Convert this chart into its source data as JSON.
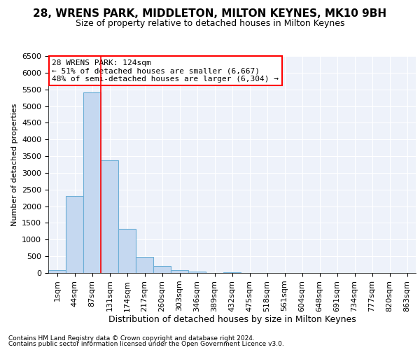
{
  "title1": "28, WRENS PARK, MIDDLETON, MILTON KEYNES, MK10 9BH",
  "title2": "Size of property relative to detached houses in Milton Keynes",
  "xlabel": "Distribution of detached houses by size in Milton Keynes",
  "ylabel": "Number of detached properties",
  "footnote1": "Contains HM Land Registry data © Crown copyright and database right 2024.",
  "footnote2": "Contains public sector information licensed under the Open Government Licence v3.0.",
  "annotation_title": "28 WRENS PARK: 124sqm",
  "annotation_line1": "← 51% of detached houses are smaller (6,667)",
  "annotation_line2": "48% of semi-detached houses are larger (6,304) →",
  "bar_values": [
    75,
    2300,
    5400,
    3380,
    1330,
    480,
    200,
    80,
    50,
    0,
    20,
    10,
    0,
    0,
    0,
    0,
    0,
    0,
    0,
    0,
    0
  ],
  "bar_labels": [
    "1sqm",
    "44sqm",
    "87sqm",
    "131sqm",
    "174sqm",
    "217sqm",
    "260sqm",
    "303sqm",
    "346sqm",
    "389sqm",
    "432sqm",
    "475sqm",
    "518sqm",
    "561sqm",
    "604sqm",
    "648sqm",
    "691sqm",
    "734sqm",
    "777sqm",
    "820sqm",
    "863sqm"
  ],
  "bar_color": "#c5d8f0",
  "bar_edge_color": "#6baed6",
  "red_line_x": 2.5,
  "marker_color": "red",
  "ylim": [
    0,
    6500
  ],
  "yticks": [
    0,
    500,
    1000,
    1500,
    2000,
    2500,
    3000,
    3500,
    4000,
    4500,
    5000,
    5500,
    6000,
    6500
  ],
  "bg_color": "#eef2fa",
  "grid_color": "white",
  "title1_fontsize": 11,
  "title2_fontsize": 9,
  "xlabel_fontsize": 9,
  "ylabel_fontsize": 8,
  "tick_fontsize": 8,
  "annotation_fontsize": 8,
  "annotation_box_color": "white",
  "annotation_box_edge": "red"
}
